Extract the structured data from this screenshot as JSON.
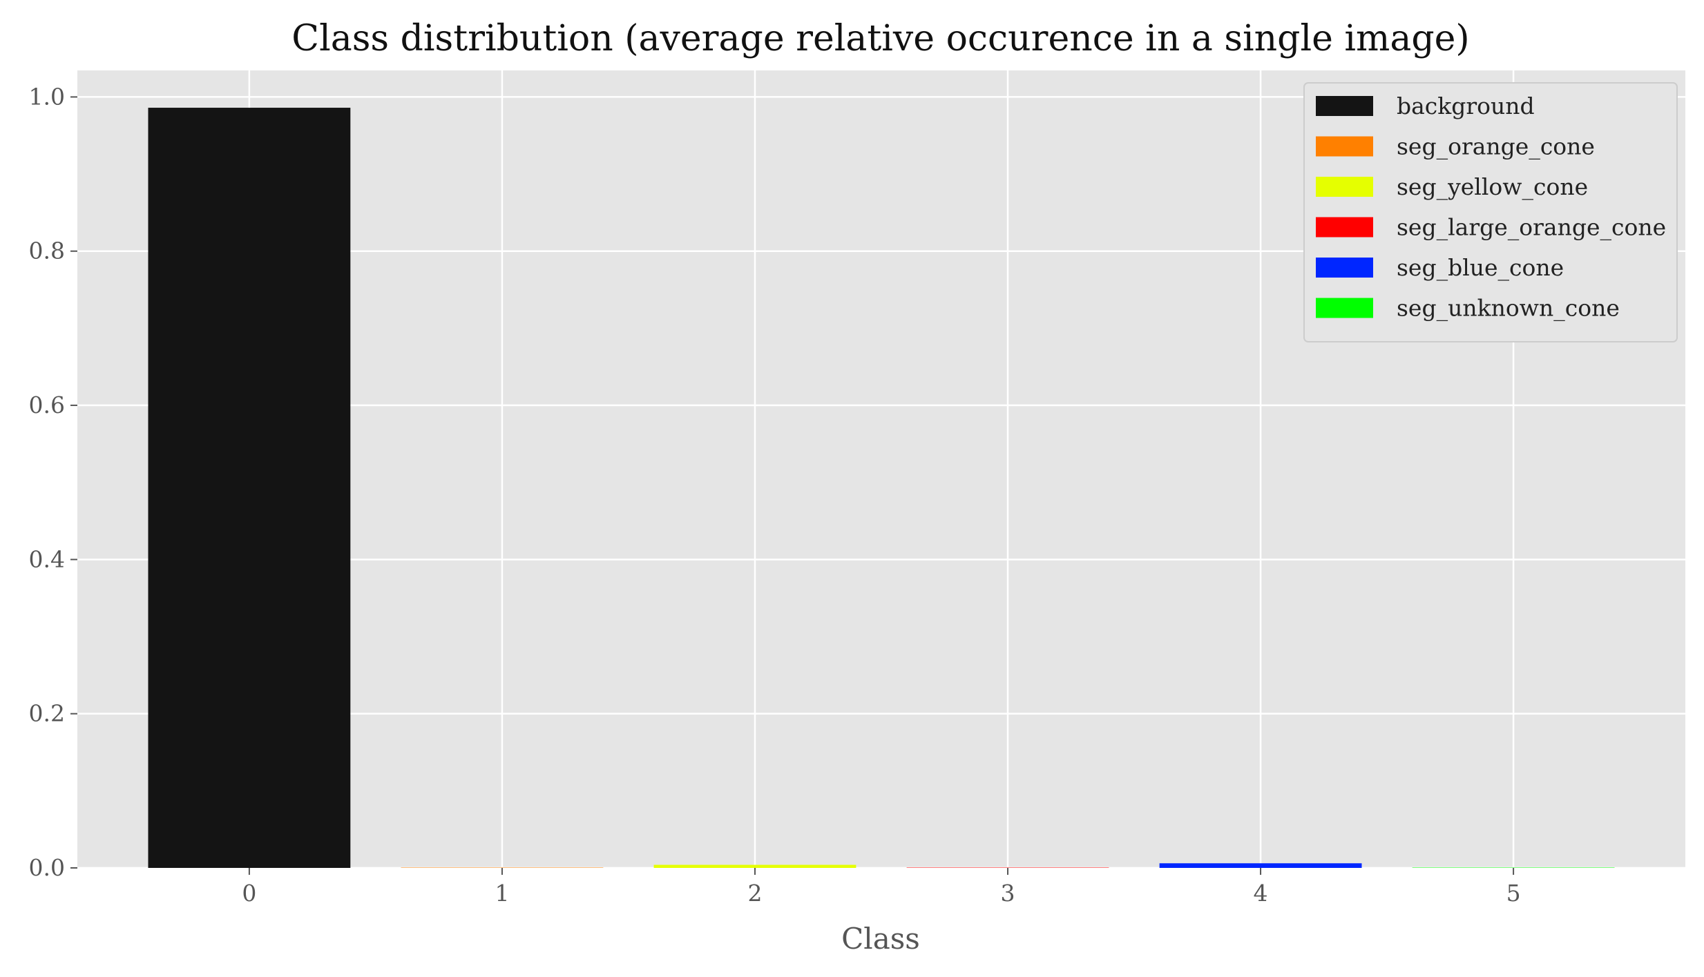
{
  "chart_data": {
    "type": "bar",
    "title": "Class distribution (average relative occurence in a single image)",
    "xlabel": "Class",
    "ylabel": "",
    "categories": [
      "0",
      "1",
      "2",
      "3",
      "4",
      "5"
    ],
    "values": [
      0.986,
      0.0003,
      0.004,
      0.0002,
      0.006,
      0.0002
    ],
    "colors": [
      "#141414",
      "#ff8000",
      "#e5ff00",
      "#ff0000",
      "#0026ff",
      "#00ff00"
    ],
    "series_names": [
      "background",
      "seg_orange_cone",
      "seg_yellow_cone",
      "seg_large_orange_cone",
      "seg_blue_cone",
      "seg_unknown_cone"
    ],
    "ylim": [
      0,
      1.0344
    ],
    "xlim": [
      -0.68,
      5.68
    ],
    "yticks": [
      "0.0",
      "0.2",
      "0.4",
      "0.6",
      "0.8",
      "1.0"
    ],
    "grid": true,
    "legend_position": "top-right",
    "background_color": "#e5e5e5",
    "grid_color": "#ffffff"
  }
}
